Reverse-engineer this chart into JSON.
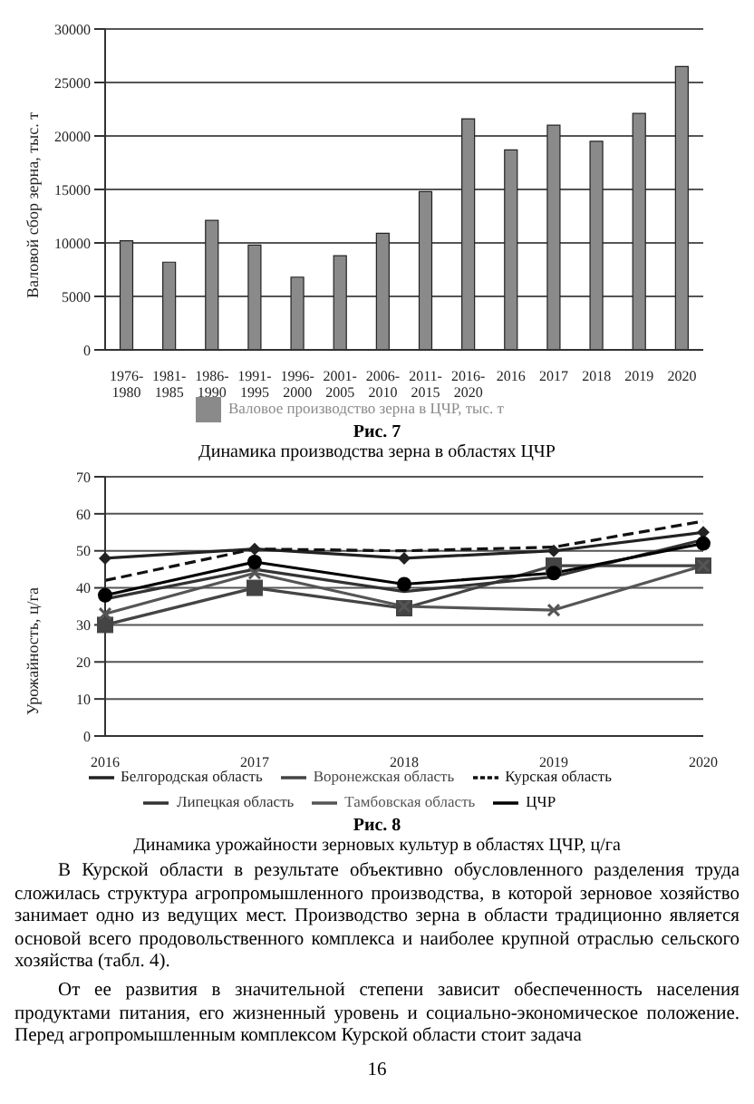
{
  "chart_data": [
    {
      "type": "bar",
      "title": "Рис. 7",
      "subtitle": "Динамика производства зерна в областях ЦЧР",
      "ylabel": "Валовой сбор зерна, тыс. т",
      "categories": [
        "1976-1980",
        "1981-1985",
        "1986-1990",
        "1991-1995",
        "1996-2000",
        "2001-2005",
        "2006-2010",
        "2011-2015",
        "2016-2020",
        "2016",
        "2017",
        "2018",
        "2019",
        "2020"
      ],
      "series": [
        {
          "name": "Валовое производство зерна в ЦЧР, тыс. т",
          "color": "#8a8a8a",
          "values": [
            10200,
            8200,
            12100,
            9800,
            6800,
            8800,
            10900,
            14800,
            21600,
            18700,
            21000,
            19500,
            22100,
            26500
          ]
        }
      ],
      "ylim": [
        0,
        30000
      ],
      "yticks": [
        0,
        5000,
        10000,
        15000,
        20000,
        25000,
        30000
      ],
      "grid": "y",
      "legend": "bottom"
    },
    {
      "type": "line",
      "title": "Рис. 8",
      "subtitle": "Динамика урожайности зерновых культур в областях ЦЧР, ц/га",
      "ylabel": "Урожайность, ц/га",
      "categories": [
        "2016",
        "2017",
        "2018",
        "2019",
        "2020"
      ],
      "series": [
        {
          "name": "Белгородская область",
          "color": "#222222",
          "marker": "diamond",
          "line_style": "solid",
          "values": [
            48,
            50.5,
            48,
            50,
            55
          ]
        },
        {
          "name": "Воронежская область",
          "color": "#444444",
          "marker": "square",
          "line_style": "solid",
          "values": [
            30,
            40,
            34.5,
            46,
            46
          ]
        },
        {
          "name": "Курская область",
          "color": "#111111",
          "marker": "none",
          "line_style": "dashed",
          "values": [
            42,
            50.5,
            50,
            51,
            58
          ]
        },
        {
          "name": "Липецкая область",
          "color": "#333333",
          "marker": "none",
          "line_style": "solid",
          "values": [
            37,
            45,
            39,
            43,
            53
          ]
        },
        {
          "name": "Тамбовская область",
          "color": "#555555",
          "marker": "cross",
          "line_style": "solid",
          "values": [
            33,
            44,
            35,
            34,
            46
          ]
        },
        {
          "name": "ЦЧР",
          "color": "#000000",
          "marker": "circle",
          "line_style": "solid",
          "values": [
            38,
            47,
            41,
            44,
            52
          ]
        }
      ],
      "ylim": [
        0,
        70
      ],
      "yticks": [
        0,
        10,
        20,
        30,
        40,
        50,
        60,
        70
      ],
      "grid": "y",
      "legend": "bottom",
      "annotations": [
        "В Курской области в результате объективно обусловленного разделения труда сложилась структура агропромышленного производства, в которой зерновое хозяйство занимает одно из ведущих мест. Производство зерна в области традиционно является основой всего продовольственного комплекса и наиболее крупной отраслью сельского хозяйства (табл. 4).",
        "От ее развития в значительной степени зависит обеспеченность населения продуктами питания, его жизненный уровень и социально-экономическое положение. Перед агропромышленным комплексом Курской области стоит задача",
        "16"
      ]
    }
  ]
}
